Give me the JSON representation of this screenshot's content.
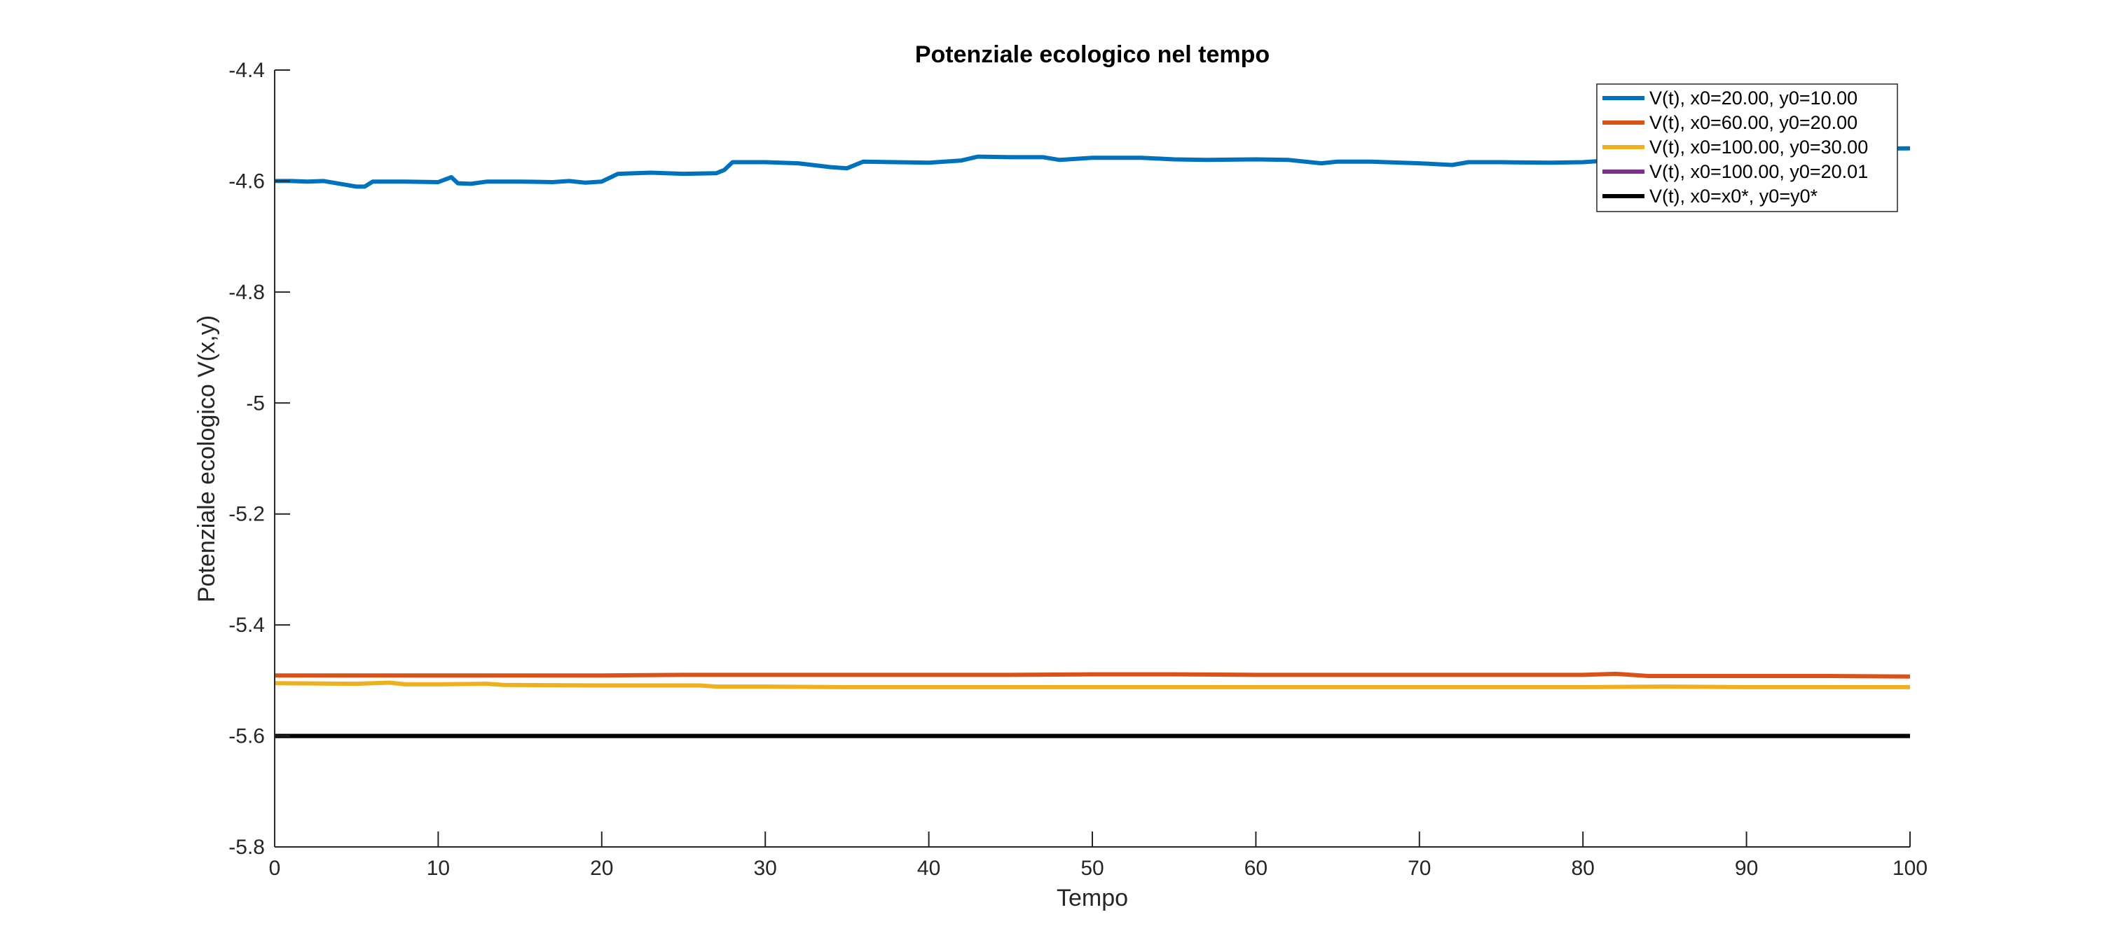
{
  "chart_data": {
    "type": "line",
    "title": "Potenziale ecologico nel tempo",
    "xlabel": "Tempo",
    "ylabel": "Potenziale ecologico V(x,y)",
    "xlim": [
      0,
      100
    ],
    "ylim": [
      -5.8,
      -4.4
    ],
    "xticks": [
      "0",
      "10",
      "20",
      "30",
      "40",
      "50",
      "60",
      "70",
      "80",
      "90",
      "100"
    ],
    "yticks": [
      "-4.4",
      "-4.6",
      "-4.8",
      "-5",
      "-5.2",
      "-5.4",
      "-5.6",
      "-5.8"
    ],
    "grid": false,
    "legend_position": "top-right",
    "series": [
      {
        "name": "V(t), x0=20.00, y0=10.00",
        "color": "#0072BD",
        "x": [
          0,
          1,
          2,
          3,
          4,
          5,
          5.5,
          6,
          8,
          10,
          10.8,
          11.2,
          12,
          13,
          15,
          17,
          18,
          19,
          20,
          21,
          23,
          25,
          27,
          27.5,
          28,
          30,
          32,
          34,
          35,
          36,
          38,
          40,
          42,
          43,
          45,
          47,
          48,
          50,
          53,
          55,
          57,
          60,
          62,
          64,
          65,
          67,
          70,
          72,
          73,
          75,
          78,
          80,
          82,
          84,
          86,
          88,
          90,
          92,
          95,
          97,
          100
        ],
        "y": [
          -4.6,
          -4.6,
          -4.601,
          -4.6,
          -4.605,
          -4.61,
          -4.61,
          -4.601,
          -4.601,
          -4.602,
          -4.593,
          -4.604,
          -4.605,
          -4.601,
          -4.601,
          -4.602,
          -4.6,
          -4.603,
          -4.601,
          -4.587,
          -4.585,
          -4.587,
          -4.586,
          -4.58,
          -4.566,
          -4.566,
          -4.568,
          -4.575,
          -4.577,
          -4.565,
          -4.566,
          -4.567,
          -4.563,
          -4.556,
          -4.557,
          -4.557,
          -4.562,
          -4.558,
          -4.558,
          -4.561,
          -4.562,
          -4.561,
          -4.562,
          -4.568,
          -4.565,
          -4.565,
          -4.568,
          -4.571,
          -4.566,
          -4.566,
          -4.567,
          -4.566,
          -4.562,
          -4.558,
          -4.552,
          -4.55,
          -4.548,
          -4.546,
          -4.544,
          -4.542,
          -4.541
        ]
      },
      {
        "name": "V(t), x0=60.00, y0=20.00",
        "color": "#D95319",
        "x": [
          0,
          5,
          10,
          15,
          20,
          25,
          30,
          35,
          40,
          45,
          50,
          55,
          60,
          65,
          70,
          75,
          80,
          82,
          84,
          90,
          95,
          100
        ],
        "y": [
          -5.491,
          -5.491,
          -5.491,
          -5.491,
          -5.491,
          -5.49,
          -5.49,
          -5.49,
          -5.49,
          -5.49,
          -5.489,
          -5.489,
          -5.49,
          -5.49,
          -5.49,
          -5.49,
          -5.49,
          -5.488,
          -5.492,
          -5.492,
          -5.492,
          -5.493
        ]
      },
      {
        "name": "V(t), x0=100.00, y0=30.00",
        "color": "#EDB120",
        "x": [
          0,
          5,
          7,
          8,
          10,
          13,
          14,
          20,
          26,
          27,
          30,
          35,
          40,
          45,
          50,
          55,
          60,
          65,
          70,
          75,
          80,
          85,
          90,
          95,
          100
        ],
        "y": [
          -5.505,
          -5.506,
          -5.504,
          -5.507,
          -5.507,
          -5.506,
          -5.508,
          -5.509,
          -5.509,
          -5.511,
          -5.511,
          -5.512,
          -5.512,
          -5.512,
          -5.512,
          -5.512,
          -5.512,
          -5.512,
          -5.512,
          -5.512,
          -5.512,
          -5.511,
          -5.512,
          -5.512,
          -5.512
        ]
      },
      {
        "name": "V(t), x0=100.00, y0=20.01",
        "color": "#7E2F8E",
        "x": [
          0,
          100
        ],
        "y": [
          -5.6,
          -5.6
        ]
      },
      {
        "name": "V(t),  x0=x0*,  y0=y0*",
        "color": "#000000",
        "x": [
          0,
          100
        ],
        "y": [
          -5.6,
          -5.6
        ]
      }
    ]
  }
}
